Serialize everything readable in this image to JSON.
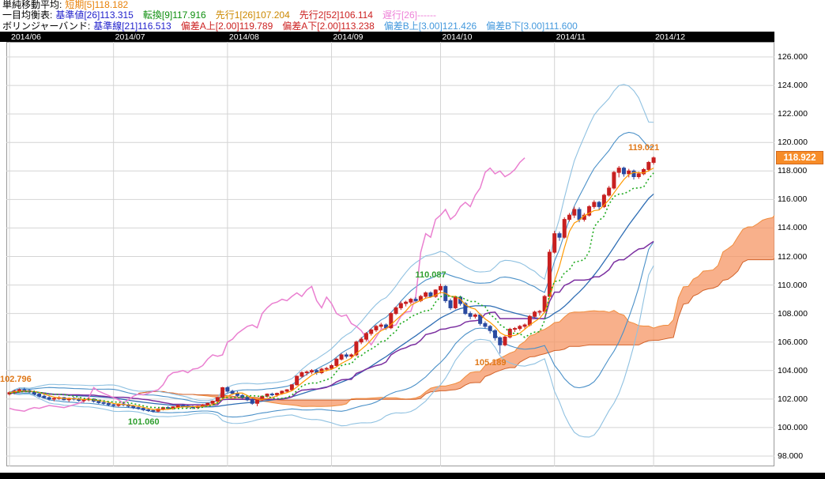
{
  "legend": {
    "sma": {
      "label": "単純移動平均:",
      "items": [
        {
          "text": "短期[5]118.182",
          "color": "#e8820a"
        }
      ]
    },
    "ichimoku": {
      "label": "一目均衡表:",
      "items": [
        {
          "text": "基準値[26]113.315",
          "color": "#2222cc"
        },
        {
          "text": "転換[9]117.916",
          "color": "#0e8f0e"
        },
        {
          "text": "先行1[26]107.204",
          "color": "#cc8800"
        },
        {
          "text": "先行2[52]106.114",
          "color": "#cc2222"
        },
        {
          "text": "遅行[26]------",
          "color": "#ee82d8"
        }
      ]
    },
    "bollinger": {
      "label": "ボリンジャーバンド:",
      "items": [
        {
          "text": "基準線[21]116.513",
          "color": "#2222cc"
        },
        {
          "text": "偏差A上[2.00]119.789",
          "color": "#cc2222"
        },
        {
          "text": "偏差A下[2.00]113.238",
          "color": "#cc2222"
        },
        {
          "text": "偏差B上[3.00]121.426",
          "color": "#4499dd"
        },
        {
          "text": "偏差B下[3.00]111.600",
          "color": "#4499dd"
        }
      ]
    }
  },
  "chart_data": {
    "type": "candlestick",
    "x_axis": {
      "labels": [
        "2014/06",
        "2014/07",
        "2014/08",
        "2014/09",
        "2014/10",
        "2014/11",
        "2014/12"
      ],
      "month_start_indices": [
        0,
        21,
        44,
        65,
        87,
        110,
        130
      ]
    },
    "y_axis": {
      "min": 98,
      "max": 126,
      "step": 2,
      "ticks": [
        "126.000",
        "124.000",
        "122.000",
        "120.000",
        "118.000",
        "116.000",
        "114.000",
        "112.000",
        "110.000",
        "108.000",
        "106.000",
        "104.000",
        "102.000",
        "100.000",
        "98.000"
      ],
      "current_price": "118.922"
    },
    "indicators": {
      "sma_short": {
        "period": 5,
        "value": 118.182,
        "color": "#ff9900",
        "style": "solid"
      },
      "tenkan": {
        "period": 9,
        "value": 117.916,
        "color": "#1faa1f",
        "style": "dotted"
      },
      "kijun": {
        "period": 26,
        "value": 113.315,
        "color": "#7b2fa0",
        "style": "solid"
      },
      "senkou_a": {
        "period": 26,
        "value": 107.204,
        "color": "#f08c3c"
      },
      "senkou_b": {
        "period": 52,
        "value": 106.114,
        "color": "#d2622a"
      },
      "chikou": {
        "period": 26,
        "color": "#ea7fd0"
      },
      "boll_center": {
        "period": 21,
        "value": 116.513,
        "color": "#2e6db4"
      },
      "boll_a": {
        "mult": 2,
        "upper": 119.789,
        "lower": 113.238,
        "color": "#4a90c8"
      },
      "boll_b": {
        "mult": 3,
        "upper": 121.426,
        "lower": 111.6,
        "color": "#8fc1e1"
      }
    },
    "cloud_fill": "rgba(245,150,100,0.75)",
    "colors": {
      "up": "#c82020",
      "down": "#2a4aa0",
      "grid": "#d4d4d4",
      "border": "#9a9a9a"
    },
    "annotations": [
      {
        "text": "102.796",
        "price": 102.796,
        "index": 3,
        "placement": "above",
        "color": "#e07818"
      },
      {
        "text": "101.060",
        "price": 101.06,
        "index": 29,
        "placement": "below",
        "color": "#2e9e2e"
      },
      {
        "text": "110.087",
        "price": 110.087,
        "index": 87,
        "placement": "above",
        "color": "#2e9e2e"
      },
      {
        "text": "105.189",
        "price": 105.189,
        "index": 99,
        "placement": "below",
        "color": "#e07818"
      },
      {
        "text": "119.021",
        "price": 119.021,
        "index": 130,
        "placement": "above",
        "color": "#e07818"
      }
    ],
    "candles": [
      [
        102.35,
        102.55,
        102.25,
        102.45
      ],
      [
        102.45,
        102.65,
        102.35,
        102.55
      ],
      [
        102.55,
        102.75,
        102.45,
        102.65
      ],
      [
        102.65,
        102.8,
        102.5,
        102.6
      ],
      [
        102.6,
        102.7,
        102.4,
        102.5
      ],
      [
        102.5,
        102.6,
        102.25,
        102.35
      ],
      [
        102.35,
        102.45,
        102.1,
        102.2
      ],
      [
        102.2,
        102.35,
        102.05,
        102.1
      ],
      [
        102.1,
        102.2,
        101.9,
        102.0
      ],
      [
        102.0,
        102.15,
        101.85,
        102.05
      ],
      [
        102.05,
        102.2,
        101.95,
        102.1
      ],
      [
        102.1,
        102.15,
        101.9,
        101.95
      ],
      [
        101.95,
        102.1,
        101.8,
        102.05
      ],
      [
        102.05,
        102.15,
        101.9,
        102.0
      ],
      [
        102.0,
        102.1,
        101.8,
        101.9
      ],
      [
        101.9,
        102.05,
        101.75,
        101.95
      ],
      [
        101.95,
        102.1,
        101.85,
        102.0
      ],
      [
        102.0,
        102.05,
        101.75,
        101.85
      ],
      [
        101.85,
        101.95,
        101.65,
        101.75
      ],
      [
        101.75,
        101.9,
        101.6,
        101.7
      ],
      [
        101.7,
        101.8,
        101.5,
        101.6
      ],
      [
        101.6,
        101.7,
        101.45,
        101.55
      ],
      [
        101.55,
        101.7,
        101.45,
        101.65
      ],
      [
        101.65,
        101.75,
        101.5,
        101.6
      ],
      [
        101.6,
        101.7,
        101.4,
        101.5
      ],
      [
        101.5,
        101.6,
        101.3,
        101.4
      ],
      [
        101.4,
        101.5,
        101.25,
        101.35
      ],
      [
        101.35,
        101.45,
        101.15,
        101.25
      ],
      [
        101.25,
        101.35,
        101.1,
        101.2
      ],
      [
        101.2,
        101.3,
        101.06,
        101.15
      ],
      [
        101.15,
        101.35,
        101.08,
        101.3
      ],
      [
        101.3,
        101.45,
        101.2,
        101.4
      ],
      [
        101.4,
        101.5,
        101.25,
        101.35
      ],
      [
        101.35,
        101.5,
        101.25,
        101.45
      ],
      [
        101.45,
        101.6,
        101.35,
        101.55
      ],
      [
        101.55,
        101.65,
        101.4,
        101.5
      ],
      [
        101.5,
        101.6,
        101.35,
        101.45
      ],
      [
        101.45,
        101.55,
        101.3,
        101.4
      ],
      [
        101.4,
        101.55,
        101.3,
        101.5
      ],
      [
        101.5,
        101.65,
        101.4,
        101.6
      ],
      [
        101.6,
        101.75,
        101.5,
        101.7
      ],
      [
        101.7,
        101.9,
        101.6,
        101.85
      ],
      [
        101.85,
        102.15,
        101.75,
        102.1
      ],
      [
        102.1,
        102.85,
        102.0,
        102.8
      ],
      [
        102.8,
        102.9,
        102.45,
        102.55
      ],
      [
        102.55,
        102.65,
        102.3,
        102.4
      ],
      [
        102.4,
        102.55,
        102.15,
        102.25
      ],
      [
        102.25,
        102.35,
        102.0,
        102.1
      ],
      [
        102.1,
        102.2,
        101.85,
        101.95
      ],
      [
        101.95,
        102.1,
        101.6,
        101.7
      ],
      [
        101.7,
        102.0,
        101.5,
        101.95
      ],
      [
        101.95,
        102.25,
        101.85,
        102.2
      ],
      [
        102.2,
        102.4,
        102.1,
        102.35
      ],
      [
        102.35,
        102.45,
        102.2,
        102.3
      ],
      [
        102.3,
        102.45,
        102.15,
        102.4
      ],
      [
        102.4,
        102.6,
        102.3,
        102.55
      ],
      [
        102.55,
        102.7,
        102.45,
        102.65
      ],
      [
        102.65,
        103.05,
        102.55,
        103.0
      ],
      [
        103.0,
        103.65,
        102.95,
        103.6
      ],
      [
        103.6,
        103.95,
        103.5,
        103.85
      ],
      [
        103.85,
        104.0,
        103.65,
        103.9
      ],
      [
        103.9,
        104.1,
        103.75,
        104.0
      ],
      [
        104.0,
        104.1,
        103.7,
        103.85
      ],
      [
        103.85,
        104.2,
        103.75,
        104.1
      ],
      [
        104.1,
        104.25,
        103.95,
        104.15
      ],
      [
        104.15,
        104.45,
        104.05,
        104.35
      ],
      [
        104.35,
        104.9,
        104.25,
        104.8
      ],
      [
        104.8,
        105.2,
        104.7,
        105.1
      ],
      [
        105.1,
        105.25,
        104.85,
        105.0
      ],
      [
        105.0,
        105.2,
        104.9,
        105.1
      ],
      [
        105.1,
        106.1,
        105.0,
        106.0
      ],
      [
        106.0,
        106.35,
        105.85,
        106.2
      ],
      [
        106.2,
        106.7,
        106.05,
        106.6
      ],
      [
        106.6,
        106.95,
        106.45,
        106.85
      ],
      [
        106.85,
        107.2,
        106.7,
        107.1
      ],
      [
        107.1,
        107.35,
        106.95,
        107.2
      ],
      [
        107.2,
        107.3,
        106.85,
        107.0
      ],
      [
        107.0,
        108.1,
        106.9,
        108.0
      ],
      [
        108.0,
        108.5,
        107.9,
        108.4
      ],
      [
        108.4,
        108.85,
        108.25,
        108.7
      ],
      [
        108.7,
        108.9,
        108.5,
        108.8
      ],
      [
        108.8,
        109.1,
        108.65,
        109.0
      ],
      [
        109.0,
        109.15,
        108.75,
        108.9
      ],
      [
        108.9,
        109.3,
        108.8,
        109.2
      ],
      [
        109.2,
        109.55,
        109.05,
        109.45
      ],
      [
        109.45,
        109.55,
        109.1,
        109.2
      ],
      [
        109.2,
        109.7,
        109.1,
        109.65
      ],
      [
        109.65,
        110.09,
        109.4,
        109.9
      ],
      [
        109.9,
        110.0,
        108.75,
        108.9
      ],
      [
        108.9,
        109.05,
        108.25,
        108.4
      ],
      [
        108.4,
        109.25,
        108.3,
        109.15
      ],
      [
        109.15,
        109.25,
        108.55,
        108.7
      ],
      [
        108.7,
        108.8,
        107.9,
        108.0
      ],
      [
        108.0,
        108.15,
        107.6,
        107.8
      ],
      [
        107.8,
        108.0,
        107.65,
        107.9
      ],
      [
        107.9,
        108.0,
        107.15,
        107.3
      ],
      [
        107.3,
        107.45,
        106.95,
        107.1
      ],
      [
        107.1,
        107.2,
        106.6,
        106.8
      ],
      [
        106.8,
        106.9,
        106.1,
        106.3
      ],
      [
        106.3,
        106.4,
        105.19,
        105.8
      ],
      [
        105.8,
        106.45,
        105.7,
        106.35
      ],
      [
        106.35,
        107.0,
        106.25,
        106.9
      ],
      [
        106.9,
        107.05,
        106.7,
        106.95
      ],
      [
        106.95,
        107.2,
        106.8,
        107.1
      ],
      [
        107.1,
        107.3,
        106.95,
        107.2
      ],
      [
        107.2,
        107.9,
        107.1,
        107.8
      ],
      [
        107.8,
        108.2,
        107.7,
        108.1
      ],
      [
        108.1,
        108.25,
        107.85,
        108.15
      ],
      [
        108.15,
        109.3,
        108.05,
        109.2
      ],
      [
        109.2,
        112.5,
        109.1,
        112.3
      ],
      [
        112.3,
        113.8,
        112.2,
        113.6
      ],
      [
        113.6,
        113.75,
        113.1,
        113.35
      ],
      [
        113.35,
        114.75,
        113.25,
        114.6
      ],
      [
        114.6,
        115.05,
        114.45,
        114.9
      ],
      [
        114.9,
        115.5,
        114.7,
        115.3
      ],
      [
        115.3,
        115.45,
        114.4,
        114.6
      ],
      [
        114.6,
        115.05,
        114.45,
        114.9
      ],
      [
        114.9,
        115.6,
        114.8,
        115.5
      ],
      [
        115.5,
        115.95,
        115.35,
        115.8
      ],
      [
        115.8,
        115.9,
        115.25,
        115.5
      ],
      [
        115.5,
        116.4,
        115.4,
        116.3
      ],
      [
        116.3,
        116.95,
        116.2,
        116.8
      ],
      [
        116.8,
        118.0,
        116.7,
        117.9
      ],
      [
        117.9,
        118.35,
        117.55,
        118.2
      ],
      [
        118.2,
        118.3,
        117.6,
        117.8
      ],
      [
        117.8,
        118.15,
        117.55,
        118.0
      ],
      [
        118.0,
        118.1,
        117.4,
        117.6
      ],
      [
        117.6,
        117.95,
        117.45,
        117.8
      ],
      [
        117.8,
        118.2,
        117.7,
        118.1
      ],
      [
        118.1,
        118.7,
        117.95,
        118.6
      ],
      [
        118.6,
        119.02,
        118.45,
        118.92
      ]
    ]
  }
}
